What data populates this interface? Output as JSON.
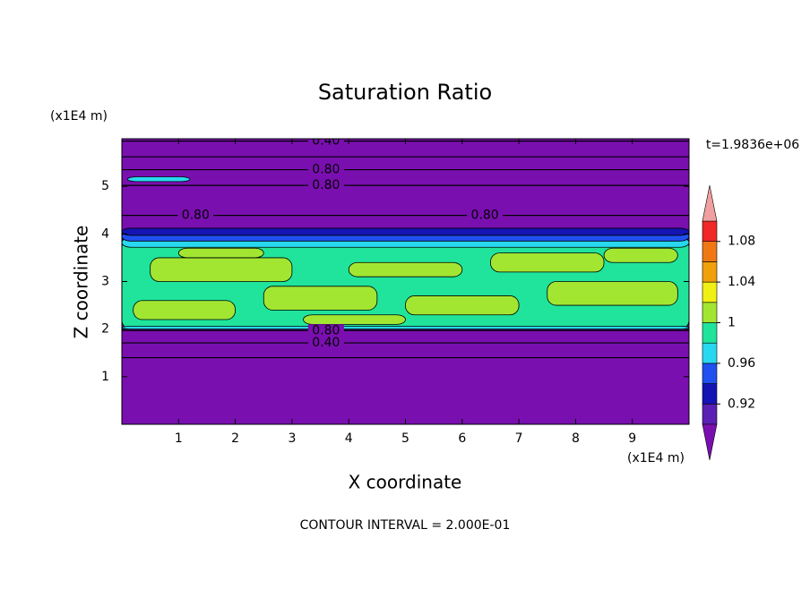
{
  "chart_data": {
    "type": "contour",
    "title": "Saturation Ratio",
    "x_label": "X coordinate",
    "y_label": "Z coordinate",
    "x_unit": "(x1E4 m)",
    "y_unit": "(x1E4 m)",
    "time_label": "t=1.9836e+06",
    "footer": "CONTOUR INTERVAL = 2.000E-01",
    "xlim": [
      0,
      10
    ],
    "ylim": [
      0,
      6
    ],
    "xticks": [
      1,
      2,
      3,
      4,
      5,
      6,
      7,
      8,
      9
    ],
    "yticks": [
      1,
      2,
      3,
      4,
      5
    ],
    "levels": [
      0.9,
      0.92,
      0.94,
      0.96,
      0.98,
      1,
      1.02,
      1.04,
      1.06,
      1.08,
      1.1
    ],
    "colors": [
      "#7a0fb0",
      "#5a20b4",
      "#1414b4",
      "#2050f0",
      "#28d8f0",
      "#20e49c",
      "#a2e632",
      "#f0f014",
      "#f0a00a",
      "#f07814",
      "#f02828",
      "#f0a0a0"
    ],
    "colorbar_ticks": [
      0.92,
      0.96,
      1,
      1.04,
      1.08
    ],
    "regions": [
      {
        "xlim": [
          0,
          10
        ],
        "ylim": [
          0,
          6
        ],
        "value": 0.85
      },
      {
        "xlim": [
          0,
          10
        ],
        "ylim": [
          2.0,
          3.9
        ],
        "value": 0.99
      },
      {
        "xlim": [
          0,
          10
        ],
        "ylim": [
          2.0,
          2.06
        ],
        "value": 0.97
      },
      {
        "xlim": [
          0,
          10
        ],
        "ylim": [
          3.72,
          3.92
        ],
        "value": 0.97
      },
      {
        "xlim": [
          0,
          10
        ],
        "ylim": [
          3.85,
          4.05
        ],
        "value": 0.95
      },
      {
        "xlim": [
          0,
          10
        ],
        "ylim": [
          3.97,
          4.12
        ],
        "value": 0.93
      },
      {
        "xlim": [
          0.1,
          1.2
        ],
        "ylim": [
          5.1,
          5.2
        ],
        "value": 0.97
      },
      {
        "xlim": [
          0.2,
          2.0
        ],
        "ylim": [
          2.2,
          2.6
        ],
        "value": 1.01
      },
      {
        "xlim": [
          2.5,
          4.5
        ],
        "ylim": [
          2.4,
          2.9
        ],
        "value": 1.01
      },
      {
        "xlim": [
          5.0,
          7.0
        ],
        "ylim": [
          2.3,
          2.7
        ],
        "value": 1.01
      },
      {
        "xlim": [
          7.5,
          9.8
        ],
        "ylim": [
          2.5,
          3.0
        ],
        "value": 1.01
      },
      {
        "xlim": [
          0.5,
          3.0
        ],
        "ylim": [
          3.0,
          3.5
        ],
        "value": 1.01
      },
      {
        "xlim": [
          4.0,
          6.0
        ],
        "ylim": [
          3.1,
          3.4
        ],
        "value": 1.01
      },
      {
        "xlim": [
          6.5,
          8.5
        ],
        "ylim": [
          3.2,
          3.6
        ],
        "value": 1.01
      },
      {
        "xlim": [
          1.0,
          2.5
        ],
        "ylim": [
          3.5,
          3.7
        ],
        "value": 1.01
      },
      {
        "xlim": [
          8.5,
          9.8
        ],
        "ylim": [
          3.4,
          3.7
        ],
        "value": 1.01
      },
      {
        "xlim": [
          3.2,
          5.0
        ],
        "ylim": [
          2.1,
          2.3
        ],
        "value": 1.01
      }
    ],
    "contour_lines": [
      {
        "value": 0.4,
        "label": "0.40",
        "y": 5.95,
        "label_x": [
          3.6
        ]
      },
      {
        "value": 0.8,
        "label": "0.80",
        "y": 5.62,
        "label_x": []
      },
      {
        "value": 0.8,
        "label": "0.80",
        "y": 5.35,
        "label_x": [
          3.6
        ]
      },
      {
        "value": 0.8,
        "label": "0.80",
        "y": 5.02,
        "label_x": [
          3.6
        ]
      },
      {
        "value": 0.8,
        "label": "0.80",
        "y": 4.39,
        "label_x": [
          1.3,
          6.4
        ]
      },
      {
        "value": 0.8,
        "label": "0.80",
        "y": 1.97,
        "label_x": [
          3.6
        ]
      },
      {
        "value": 0.4,
        "label": "0.40",
        "y": 1.71,
        "label_x": [
          3.6
        ]
      },
      {
        "value": 0.4,
        "label": "0.40",
        "y": 1.4,
        "label_x": []
      }
    ]
  }
}
